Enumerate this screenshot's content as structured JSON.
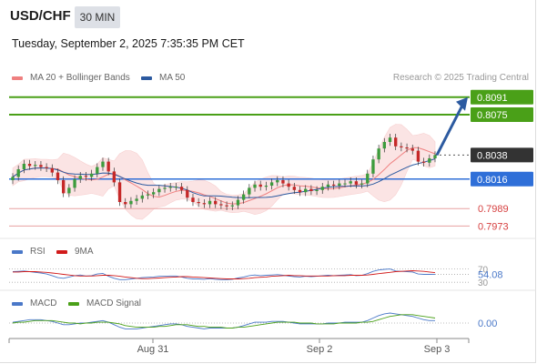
{
  "header": {
    "symbol": "USD/CHF",
    "timeframe": "30 MIN",
    "datetime": "Tuesday, September 2, 2025 7:35:35 PM CET",
    "credit": "Research © 2025 Trading Central"
  },
  "legend": {
    "ma20": {
      "label": "MA 20 + Bollinger Bands",
      "color": "#ef8080"
    },
    "ma50": {
      "label": "MA 50",
      "color": "#2c5aa0"
    }
  },
  "rsi_legend": {
    "rsi": {
      "label": "RSI",
      "color": "#4a78c8"
    },
    "ma9": {
      "label": "9MA",
      "color": "#d11a1a"
    }
  },
  "macd_legend": {
    "macd": {
      "label": "MACD",
      "color": "#4a78c8"
    },
    "signal": {
      "label": "MACD Signal",
      "color": "#4aa018"
    }
  },
  "chart_data": [
    {
      "type": "line",
      "panel": "price",
      "x_ticks": [
        "Aug 31",
        "Sep 2",
        "Sep 3"
      ],
      "ylim": [
        0.7965,
        0.81
      ],
      "levels": [
        {
          "value": 0.8091,
          "label": "0.8091",
          "style": "resistance",
          "color": "#4aa018"
        },
        {
          "value": 0.8075,
          "label": "0.8075",
          "style": "resistance",
          "color": "#4aa018"
        },
        {
          "value": 0.8038,
          "label": "0.8038",
          "style": "last-price",
          "color": "#333333"
        },
        {
          "value": 0.8016,
          "label": "0.8016",
          "style": "pivot",
          "color": "#2f6fd8"
        },
        {
          "value": 0.7989,
          "label": "0.7989",
          "style": "support",
          "color": "#d64040"
        },
        {
          "value": 0.7973,
          "label": "0.7973",
          "style": "support",
          "color": "#d64040"
        }
      ],
      "closes": [
        0.8018,
        0.8025,
        0.803,
        0.8028,
        0.8029,
        0.8027,
        0.8026,
        0.8022,
        0.8015,
        0.8003,
        0.8008,
        0.8016,
        0.8019,
        0.8018,
        0.8021,
        0.8027,
        0.8032,
        0.8023,
        0.8013,
        0.7995,
        0.7993,
        0.7996,
        0.7998,
        0.8001,
        0.8002,
        0.8004,
        0.8007,
        0.8008,
        0.8009,
        0.8009,
        0.8006,
        0.7999,
        0.7995,
        0.7994,
        0.7993,
        0.7996,
        0.7993,
        0.7992,
        0.7991,
        0.7992,
        0.7997,
        0.8002,
        0.8008,
        0.8011,
        0.8009,
        0.801,
        0.8013,
        0.8015,
        0.8012,
        0.8009,
        0.8006,
        0.8004,
        0.8007,
        0.8005,
        0.8006,
        0.8009,
        0.8011,
        0.801,
        0.8012,
        0.8012,
        0.8014,
        0.8011,
        0.8012,
        0.8021,
        0.8034,
        0.8044,
        0.805,
        0.8054,
        0.8046,
        0.8045,
        0.8044,
        0.8042,
        0.8032,
        0.8031,
        0.8035,
        0.8038
      ],
      "forecast_arrow": {
        "from": 0.8038,
        "to": 0.8091
      }
    },
    {
      "type": "line",
      "panel": "rsi",
      "axis_labels": [
        "70",
        "54.08",
        "30"
      ],
      "current_value": 54.08,
      "ylim": [
        25,
        80
      ],
      "series": [
        {
          "name": "RSI",
          "values": [
            62,
            63,
            64,
            62,
            60,
            58,
            55,
            50,
            44,
            42,
            46,
            50,
            52,
            49,
            50,
            55,
            57,
            48,
            42,
            38,
            38,
            40,
            42,
            44,
            45,
            46,
            48,
            48,
            49,
            49,
            46,
            42,
            40,
            40,
            39,
            41,
            39,
            38,
            38,
            39,
            43,
            46,
            50,
            52,
            50,
            51,
            52,
            53,
            51,
            49,
            47,
            46,
            48,
            47,
            48,
            50,
            51,
            50,
            51,
            52,
            53,
            50,
            51,
            56,
            63,
            67,
            69,
            70,
            64,
            63,
            62,
            61,
            55,
            54,
            54,
            54.08
          ]
        },
        {
          "name": "9MA",
          "values": [
            61,
            61,
            62,
            62,
            62,
            61,
            60,
            58,
            56,
            54,
            52,
            50,
            49,
            49,
            49,
            50,
            51,
            51,
            50,
            48,
            46,
            44,
            42,
            41,
            41,
            42,
            43,
            44,
            45,
            46,
            47,
            47,
            46,
            45,
            44,
            43,
            42,
            41,
            40,
            40,
            40,
            41,
            42,
            44,
            45,
            46,
            48,
            49,
            50,
            51,
            50,
            50,
            49,
            49,
            49,
            49,
            49,
            50,
            50,
            50,
            51,
            51,
            51,
            52,
            54,
            56,
            58,
            60,
            62,
            63,
            64,
            65,
            64,
            63,
            61,
            59
          ]
        }
      ]
    },
    {
      "type": "line",
      "panel": "macd",
      "axis_labels": [
        "0.00"
      ],
      "ylim": [
        -0.0012,
        0.0012
      ],
      "series": [
        {
          "name": "MACD",
          "values": [
            0.0001,
            0.0002,
            0.0003,
            0.0004,
            0.0004,
            0.0004,
            0.0003,
            0.0002,
            0.0,
            -0.0002,
            -0.0002,
            -0.0001,
            0.0,
            0.0,
            0.0001,
            0.0002,
            0.0003,
            0.0001,
            -0.0002,
            -0.0005,
            -0.0007,
            -0.0007,
            -0.0007,
            -0.0006,
            -0.0005,
            -0.0004,
            -0.0003,
            -0.0002,
            -0.0001,
            -0.0001,
            -0.0002,
            -0.0004,
            -0.0005,
            -0.0006,
            -0.0007,
            -0.0006,
            -0.0006,
            -0.0006,
            -0.0006,
            -0.0006,
            -0.0005,
            -0.0003,
            -0.0001,
            0.0001,
            0.0001,
            0.0001,
            0.0002,
            0.0002,
            0.0002,
            0.0001,
            0.0,
            -0.0001,
            -0.0001,
            -0.0001,
            -0.0001,
            -0.0001,
            0.0,
            0.0,
            0.0,
            0.0001,
            0.0001,
            0.0001,
            0.0001,
            0.0003,
            0.0006,
            0.0009,
            0.0011,
            0.0012,
            0.0011,
            0.001,
            0.0009,
            0.0008,
            0.0006,
            0.0004,
            0.0003,
            0.0003
          ]
        },
        {
          "name": "MACD Signal",
          "values": [
            0.0,
            0.0001,
            0.0001,
            0.0002,
            0.0003,
            0.0003,
            0.0003,
            0.0003,
            0.0002,
            0.0001,
            0.0,
            0.0,
            -0.0001,
            0.0,
            0.0,
            0.0001,
            0.0001,
            0.0001,
            0.0,
            -0.0001,
            -0.0003,
            -0.0004,
            -0.0005,
            -0.0005,
            -0.0005,
            -0.0005,
            -0.0004,
            -0.0004,
            -0.0003,
            -0.0002,
            -0.0002,
            -0.0002,
            -0.0003,
            -0.0004,
            -0.0004,
            -0.0005,
            -0.0005,
            -0.0005,
            -0.0006,
            -0.0006,
            -0.0005,
            -0.0005,
            -0.0004,
            -0.0003,
            -0.0002,
            -0.0001,
            0.0,
            0.0001,
            0.0001,
            0.0001,
            0.0001,
            0.0,
            0.0,
            0.0,
            -0.0001,
            -0.0001,
            -0.0001,
            -0.0001,
            0.0,
            0.0,
            0.0,
            0.0,
            0.0001,
            0.0001,
            0.0002,
            0.0004,
            0.0006,
            0.0008,
            0.0009,
            0.001,
            0.001,
            0.001,
            0.0009,
            0.0008,
            0.0007,
            0.0006
          ]
        }
      ]
    }
  ]
}
